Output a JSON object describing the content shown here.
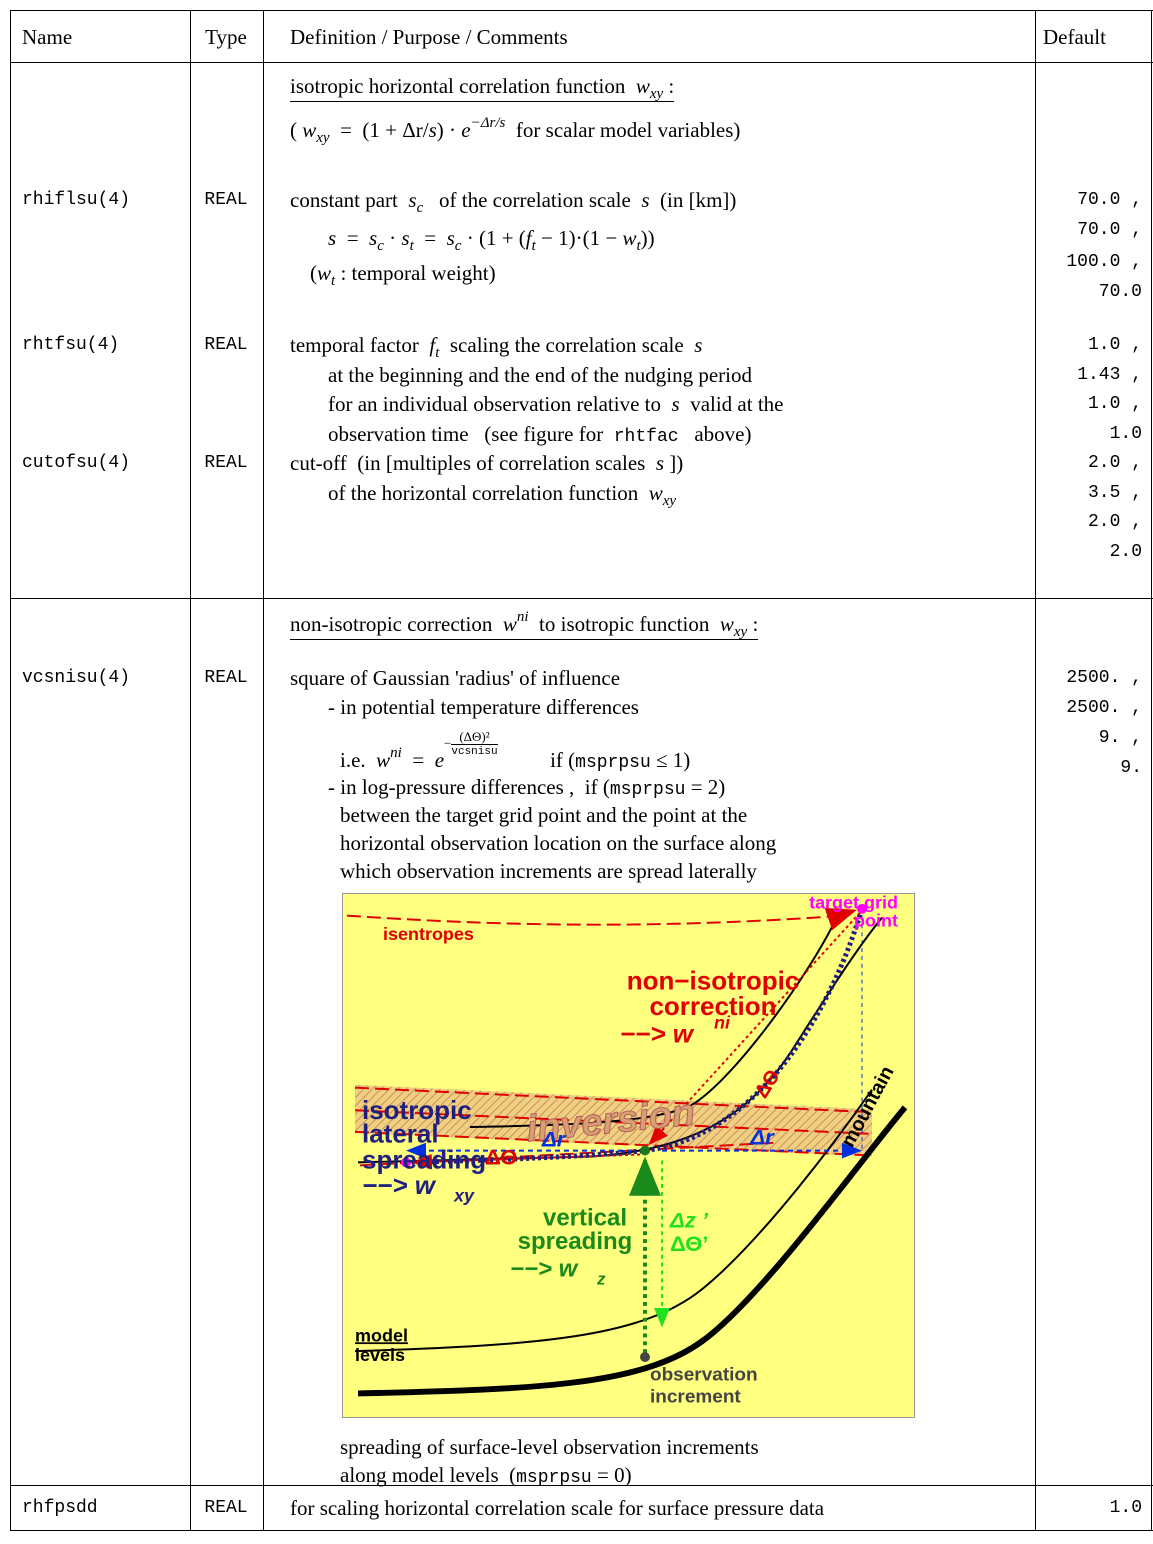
{
  "table": {
    "header": [
      "Name",
      "Type",
      "Definition / Purpose / Comments",
      "Default"
    ],
    "sections": [
      {
        "heading": [
          {
            "parts": [
              "isotropic horizontal correlation function  ",
              {
                "text": "w",
                "style": "math"
              },
              {
                "text": "xy",
                "style": "sub"
              },
              " :"
            ]
          },
          {
            "parts": [
              "( ",
              {
                "text": "w",
                "style": "math"
              },
              {
                "text": "xy",
                "style": "sub"
              },
              "  =  (1 + Δr/",
              {
                "text": "s",
                "style": "math"
              },
              ") · ",
              {
                "text": "e",
                "style": "math"
              },
              {
                "text": "−Δr/s",
                "style": "sup"
              },
              "  for scalar model variables)"
            ]
          }
        ],
        "rows": [
          {
            "name": "rhiflsu(4)",
            "type": "REAL",
            "definition": [
              {
                "parts": [
                  "constant part  ",
                  {
                    "text": "s",
                    "style": "math"
                  },
                  {
                    "text": "c",
                    "style": "sub"
                  },
                  "   of the correlation scale  ",
                  {
                    "text": "s",
                    "style": "math"
                  },
                  "  (in [km])"
                ]
              },
              {
                "indent": 2,
                "parts": [
                  {
                    "text": "s",
                    "style": "math"
                  },
                  "  =  ",
                  {
                    "text": "s",
                    "style": "math"
                  },
                  {
                    "text": "c",
                    "style": "sub"
                  },
                  " · ",
                  {
                    "text": "s",
                    "style": "math"
                  },
                  {
                    "text": "t",
                    "style": "sub"
                  },
                  "  =  ",
                  {
                    "text": "s",
                    "style": "math"
                  },
                  {
                    "text": "c",
                    "style": "sub"
                  },
                  " · (1 + (",
                  {
                    "text": "f",
                    "style": "math"
                  },
                  {
                    "text": "t",
                    "style": "sub"
                  },
                  " − 1)·(1 − ",
                  {
                    "text": "w",
                    "style": "math"
                  },
                  {
                    "text": "t",
                    "style": "sub"
                  },
                  "))"
                ]
              },
              {
                "indent": 1,
                "parts": [
                  "(",
                  {
                    "text": "w",
                    "style": "math"
                  },
                  {
                    "text": "t",
                    "style": "sub"
                  },
                  " : temporal weight)"
                ]
              }
            ],
            "default": [
              "70.0 ,",
              "70.0 ,",
              "100.0 ,",
              "70.0"
            ]
          },
          {
            "name": "rhtfsu(4)",
            "type": "REAL",
            "definition": [
              {
                "parts": [
                  "temporal factor  ",
                  {
                    "text": "f",
                    "style": "math"
                  },
                  {
                    "text": "t",
                    "style": "sub"
                  },
                  "  scaling the correlation scale  ",
                  {
                    "text": "s",
                    "style": "math"
                  }
                ]
              },
              {
                "indent": 2,
                "parts": [
                  "at the beginning and the end of the nudging period"
                ]
              },
              {
                "indent": 2,
                "parts": [
                  "for an individual observation relative to  ",
                  {
                    "text": "s",
                    "style": "math"
                  },
                  "  valid at the"
                ]
              },
              {
                "indent": 2,
                "parts": [
                  "observation time   (see figure for  ",
                  {
                    "text": "rhtfac",
                    "style": "mono"
                  },
                  "   above)"
                ]
              }
            ],
            "default": [
              "1.0 ,",
              "1.43 ,",
              "1.0 ,",
              "1.0"
            ]
          },
          {
            "name": "cutofsu(4)",
            "type": "REAL",
            "definition": [
              {
                "parts": [
                  "cut-off  (in [multiples of correlation scales  ",
                  {
                    "text": "s",
                    "style": "math"
                  },
                  " ])"
                ]
              },
              {
                "indent": 2,
                "parts": [
                  "of the horizontal correlation function  ",
                  {
                    "text": "w",
                    "style": "math"
                  },
                  {
                    "text": "xy",
                    "style": "sub"
                  }
                ]
              }
            ],
            "default": [
              "2.0 ,",
              "3.5 ,",
              "2.0 ,",
              "2.0"
            ]
          }
        ]
      },
      {
        "heading": [
          {
            "parts": [
              "non-isotropic correction  ",
              {
                "text": "w",
                "style": "math"
              },
              {
                "text": "ni",
                "style": "sup"
              },
              "  to isotropic function  ",
              {
                "text": "w",
                "style": "math"
              },
              {
                "text": "xy",
                "style": "sub"
              },
              " :"
            ]
          }
        ],
        "rows": [
          {
            "name": "vcsnisu(4)",
            "type": "REAL",
            "definition": [
              {
                "parts": [
                  "square of Gaussian 'radius' of influence"
                ]
              },
              {
                "indent": 2,
                "parts": [
                  "- in potential temperature differences"
                ]
              },
              {
                "indent": 3,
                "parts": [
                  "i.e.  ",
                  {
                    "text": "w",
                    "style": "math"
                  },
                  {
                    "text": "ni",
                    "style": "sup"
                  },
                  "  =  ",
                  {
                    "text": "e",
                    "style": "math"
                  },
                  {
                    "style": "supfrac",
                    "sign": "−",
                    "num": "(ΔΘ)²",
                    "den": "vcsnisu"
                  },
                  "          if (",
                  {
                    "text": "msprpsu",
                    "style": "mono"
                  },
                  " ≤ 1)"
                ]
              },
              {
                "indent": 2,
                "parts": [
                  "- in log-pressure differences ,  if (",
                  {
                    "text": "msprpsu",
                    "style": "mono"
                  },
                  " = 2)"
                ]
              },
              {
                "indent": 3,
                "parts": [
                  "between the target grid point and the point at the"
                ]
              },
              {
                "indent": 3,
                "parts": [
                  "horizontal observation location on the surface along"
                ]
              },
              {
                "indent": 3,
                "parts": [
                  "which observation increments are spread laterally"
                ]
              }
            ],
            "figure": {
              "labels": [
                "target grid",
                "point",
                "isentropes",
                "non−isotropic",
                "correction",
                "−−> w",
                "ni",
                "ΔΘ",
                "isotropic",
                "lateral",
                "spreading",
                "−−> w",
                "xy",
                "inversion",
                "mountain",
                "ΔΘ",
                "Δr",
                "Δr",
                "vertical",
                "spreading",
                "−−> w",
                "z",
                "Δz ’",
                "ΔΘ’",
                "model",
                "levels",
                "observation",
                "increment"
              ]
            },
            "caption": [
              {
                "indent": 3,
                "parts": [
                  "spreading of surface-level observation increments"
                ]
              },
              {
                "indent": 3,
                "parts": [
                  "along model levels  (",
                  {
                    "text": "msprpsu",
                    "style": "mono"
                  },
                  " = 0)"
                ]
              }
            ],
            "default": [
              "2500. ,",
              "2500. ,",
              "9. ,",
              "9."
            ]
          }
        ]
      },
      {
        "rows": [
          {
            "name": "rhfpsdd",
            "type": "REAL",
            "definition": [
              {
                "parts": [
                  "for scaling horizontal correlation scale for surface pressure data"
                ]
              }
            ],
            "default": [
              "1.0"
            ]
          }
        ]
      }
    ]
  }
}
